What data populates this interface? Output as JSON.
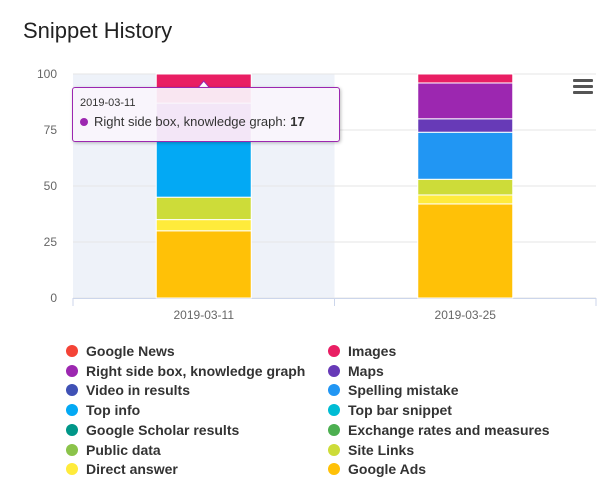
{
  "title": "Snippet History",
  "chart_data": {
    "type": "bar",
    "stacked": true,
    "categories": [
      "2019-03-11",
      "2019-03-25"
    ],
    "ylim": [
      0,
      100
    ],
    "yticks": [
      0,
      25,
      50,
      75,
      100
    ],
    "xlabel": "",
    "ylabel": "",
    "grid": true,
    "legend_position": "bottom",
    "series": [
      {
        "name": "Google Ads",
        "color": "#ffc107",
        "values": [
          30,
          42
        ]
      },
      {
        "name": "Direct answer",
        "color": "#ffeb3b",
        "values": [
          5,
          4
        ]
      },
      {
        "name": "Site Links",
        "color": "#cddc39",
        "values": [
          10,
          7
        ]
      },
      {
        "name": "Public data",
        "color": "#8bc34a",
        "values": [
          0,
          0
        ]
      },
      {
        "name": "Exchange rates and measures",
        "color": "#4caf50",
        "values": [
          0,
          0
        ]
      },
      {
        "name": "Google Scholar results",
        "color": "#009688",
        "values": [
          0,
          0
        ]
      },
      {
        "name": "Top bar snippet",
        "color": "#00bcd4",
        "values": [
          0,
          0
        ]
      },
      {
        "name": "Top info",
        "color": "#03a9f4",
        "values": [
          25,
          0
        ]
      },
      {
        "name": "Spelling mistake",
        "color": "#2196f3",
        "values": [
          0,
          21
        ]
      },
      {
        "name": "Video in results",
        "color": "#3f51b5",
        "values": [
          0,
          0
        ]
      },
      {
        "name": "Maps",
        "color": "#673ab7",
        "values": [
          0,
          6
        ]
      },
      {
        "name": "Right side box, knowledge graph",
        "color": "#9c27b0",
        "values": [
          17,
          16
        ]
      },
      {
        "name": "Images",
        "color": "#e91e63",
        "values": [
          13,
          4
        ]
      },
      {
        "name": "Google News",
        "color": "#f44336",
        "values": [
          0,
          0
        ]
      }
    ]
  },
  "legend": [
    {
      "name": "Google News",
      "color": "#f44336"
    },
    {
      "name": "Images",
      "color": "#e91e63"
    },
    {
      "name": "Right side box, knowledge graph",
      "color": "#9c27b0"
    },
    {
      "name": "Maps",
      "color": "#673ab7"
    },
    {
      "name": "Video in results",
      "color": "#3f51b5"
    },
    {
      "name": "Spelling mistake",
      "color": "#2196f3"
    },
    {
      "name": "Top info",
      "color": "#03a9f4"
    },
    {
      "name": "Top bar snippet",
      "color": "#00bcd4"
    },
    {
      "name": "Google Scholar results",
      "color": "#009688"
    },
    {
      "name": "Exchange rates and measures",
      "color": "#4caf50"
    },
    {
      "name": "Public data",
      "color": "#8bc34a"
    },
    {
      "name": "Site Links",
      "color": "#cddc39"
    },
    {
      "name": "Direct answer",
      "color": "#ffeb3b"
    },
    {
      "name": "Google Ads",
      "color": "#ffc107"
    }
  ],
  "tooltip": {
    "date": "2019-03-11",
    "series": "Right side box, knowledge graph:",
    "value": "17"
  },
  "menu": {
    "icon": "hamburger-menu-icon"
  }
}
